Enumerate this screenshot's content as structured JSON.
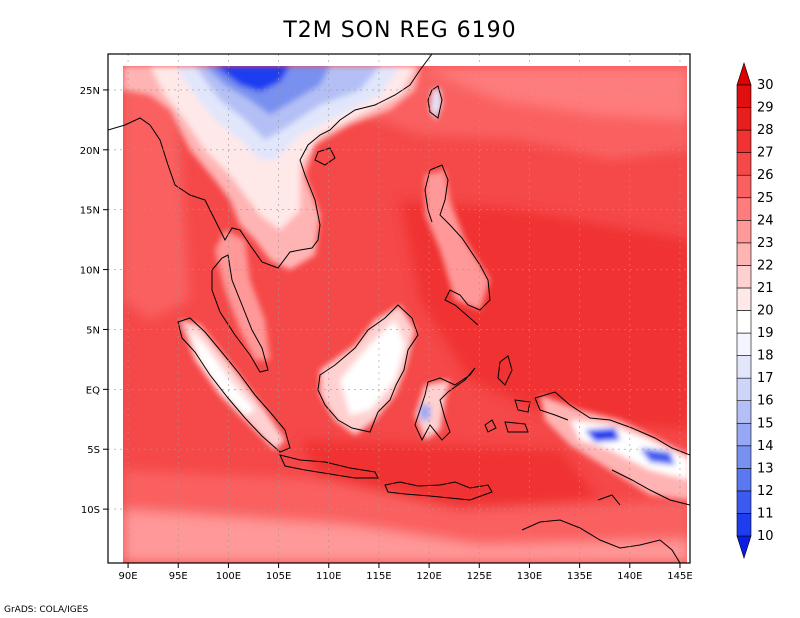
{
  "title": "T2M SON REG 6190",
  "credit": "GrADS: COLA/IGES",
  "map": {
    "lon_range": [
      88,
      146
    ],
    "lat_range": [
      -14.5,
      28
    ],
    "x_ticks": [
      {
        "value": 90,
        "label": "90E"
      },
      {
        "value": 95,
        "label": "95E"
      },
      {
        "value": 100,
        "label": "100E"
      },
      {
        "value": 105,
        "label": "105E"
      },
      {
        "value": 110,
        "label": "110E"
      },
      {
        "value": 115,
        "label": "115E"
      },
      {
        "value": 120,
        "label": "120E"
      },
      {
        "value": 125,
        "label": "125E"
      },
      {
        "value": 130,
        "label": "130E"
      },
      {
        "value": 135,
        "label": "135E"
      },
      {
        "value": 140,
        "label": "140E"
      },
      {
        "value": 145,
        "label": "145E"
      }
    ],
    "y_ticks": [
      {
        "value": 25,
        "label": "25N"
      },
      {
        "value": 20,
        "label": "20N"
      },
      {
        "value": 15,
        "label": "15N"
      },
      {
        "value": 10,
        "label": "10N"
      },
      {
        "value": 5,
        "label": "5N"
      },
      {
        "value": 0,
        "label": "EQ"
      },
      {
        "value": -5,
        "label": "5S"
      },
      {
        "value": -10,
        "label": "10S"
      }
    ],
    "grid": true,
    "field": "T2M"
  },
  "colorbar": {
    "levels": [
      "10",
      "11",
      "12",
      "13",
      "14",
      "15",
      "16",
      "17",
      "18",
      "19",
      "20",
      "21",
      "22",
      "23",
      "24",
      "25",
      "26",
      "27",
      "28",
      "29",
      "30"
    ],
    "colors": [
      "#0a1ee6",
      "#1e3cf0",
      "#3c5af0",
      "#5a78f0",
      "#7890f0",
      "#96a8f5",
      "#b4c0f5",
      "#cdd5f8",
      "#e1e6fb",
      "#f5f5ff",
      "#ffffff",
      "#ffe8e8",
      "#ffd0d0",
      "#ffb4b4",
      "#ff9898",
      "#ff7c7c",
      "#fa6060",
      "#f54848",
      "#f03232",
      "#e61e1e",
      "#e10f0f",
      "#dc0000"
    ]
  }
}
